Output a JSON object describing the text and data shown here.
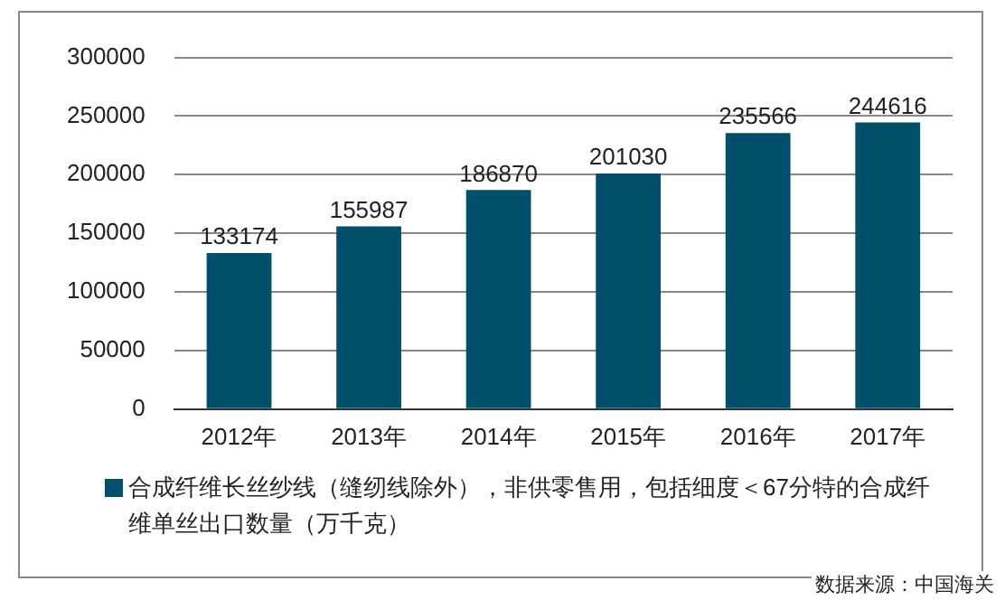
{
  "chart_data": {
    "type": "bar",
    "categories": [
      "2012年",
      "2013年",
      "2014年",
      "2015年",
      "2016年",
      "2017年"
    ],
    "series": [
      {
        "name": "合成纤维长丝纱线（缝纫线除外），非供零售用，包括细度＜67分特的合成纤维单丝出口数量（万千克）",
        "color": "#004f6b",
        "values": [
          133174,
          155987,
          186870,
          201030,
          235566,
          244616
        ]
      }
    ],
    "ylim": [
      0,
      300000
    ],
    "yticks": [
      0,
      50000,
      100000,
      150000,
      200000,
      250000,
      300000
    ],
    "grid": "y",
    "data_labels": true,
    "legend": "bottom",
    "annotations": [
      "数据来源：中国海关"
    ]
  }
}
